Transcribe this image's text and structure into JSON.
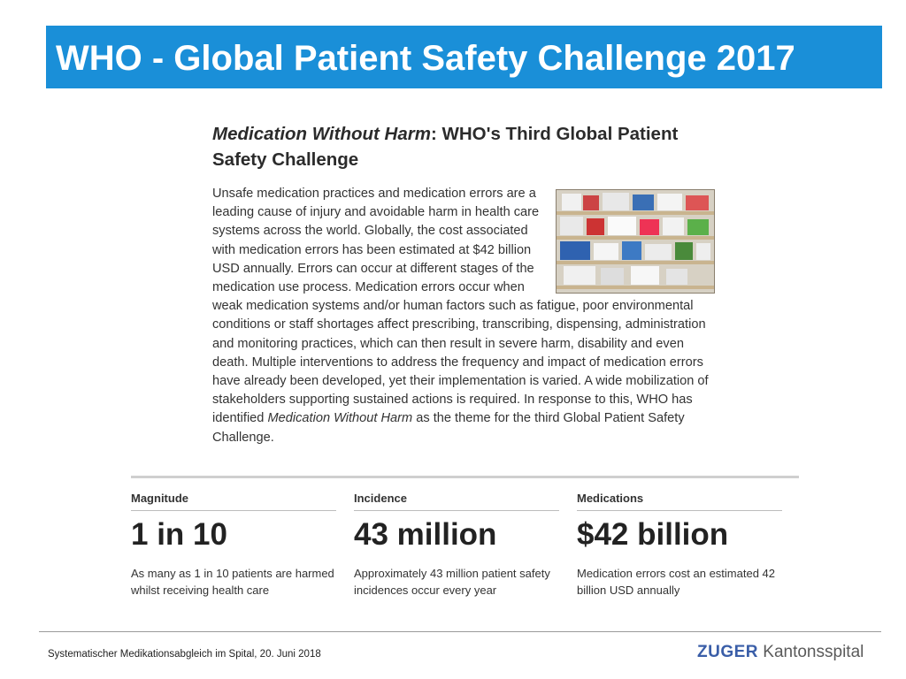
{
  "slide": {
    "title": "WHO - Global Patient Safety Challenge 2017"
  },
  "article": {
    "heading_italic": "Medication Without Harm",
    "heading_rest": ": WHO's Third Global Patient Safety Challenge",
    "body_part1": "Unsafe medication practices and medication errors are a leading cause of injury and avoidable harm in health care systems across the world. Globally, the cost associated with medication errors has been estimated at $42 billion USD annually. Errors can occur at different stages of the medication use process. Medication errors occur when weak medication systems and/or human factors such as fatigue, poor environmental conditions or staff shortages affect prescribing, transcribing, dispensing, administration and monitoring practices, which can then result in severe harm, disability and even death. Multiple interventions to address the frequency and impact of medication errors have already been developed, yet their implementation is varied. A wide mobilization of stakeholders supporting sustained actions is required. In response to this, WHO has identified ",
    "body_italic": "Medication Without Harm",
    "body_part2": " as the theme for the third Global Patient Safety Challenge."
  },
  "stats": [
    {
      "label": "Magnitude",
      "value": "1 in 10",
      "description": "As many as 1 in 10 patients are harmed whilst receiving health care"
    },
    {
      "label": "Incidence",
      "value": "43 million",
      "description": "Approximately 43 million patient safety incidences occur every year"
    },
    {
      "label": "Medications",
      "value": "$42 billion",
      "description": "Medication errors cost an estimated 42 billion USD annually"
    }
  ],
  "footer": {
    "text": "Systematischer Medikationsabgleich im Spital, 20. Juni 2018",
    "logo_part1": "ZUGER",
    "logo_part2": "Kantonsspital"
  },
  "colors": {
    "title_bar": "#1a8fd8",
    "logo_blue": "#3a5ea8"
  }
}
